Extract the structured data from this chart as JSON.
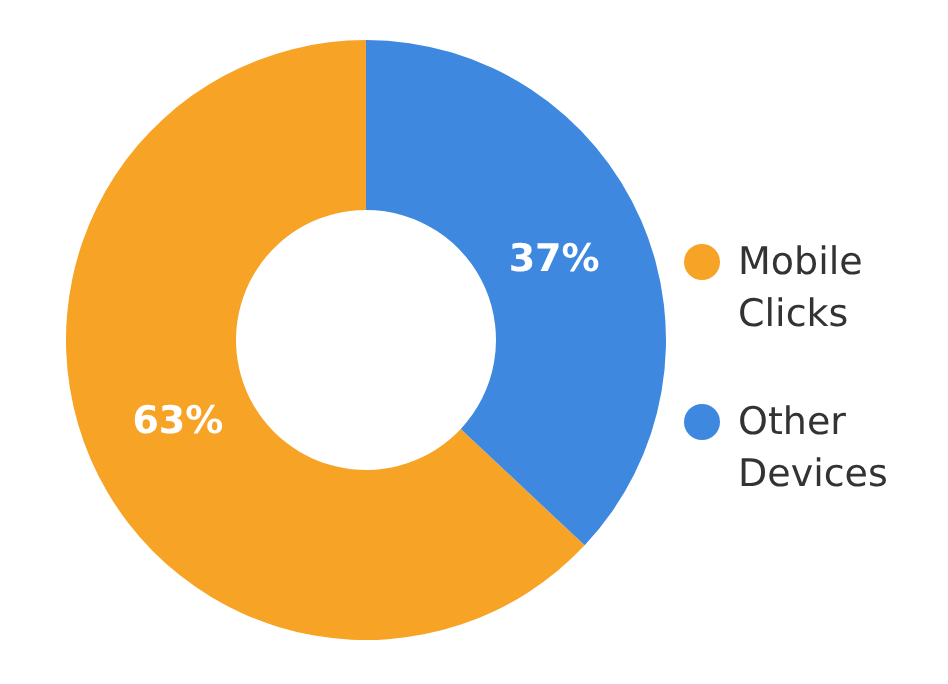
{
  "chart_data": {
    "type": "donut",
    "categories": [
      "Mobile Clicks",
      "Other Devices"
    ],
    "values": [
      63,
      37
    ],
    "colors": [
      "#f7a326",
      "#3e88e0"
    ],
    "value_labels": [
      "63%",
      "37%"
    ],
    "legend": "right"
  }
}
